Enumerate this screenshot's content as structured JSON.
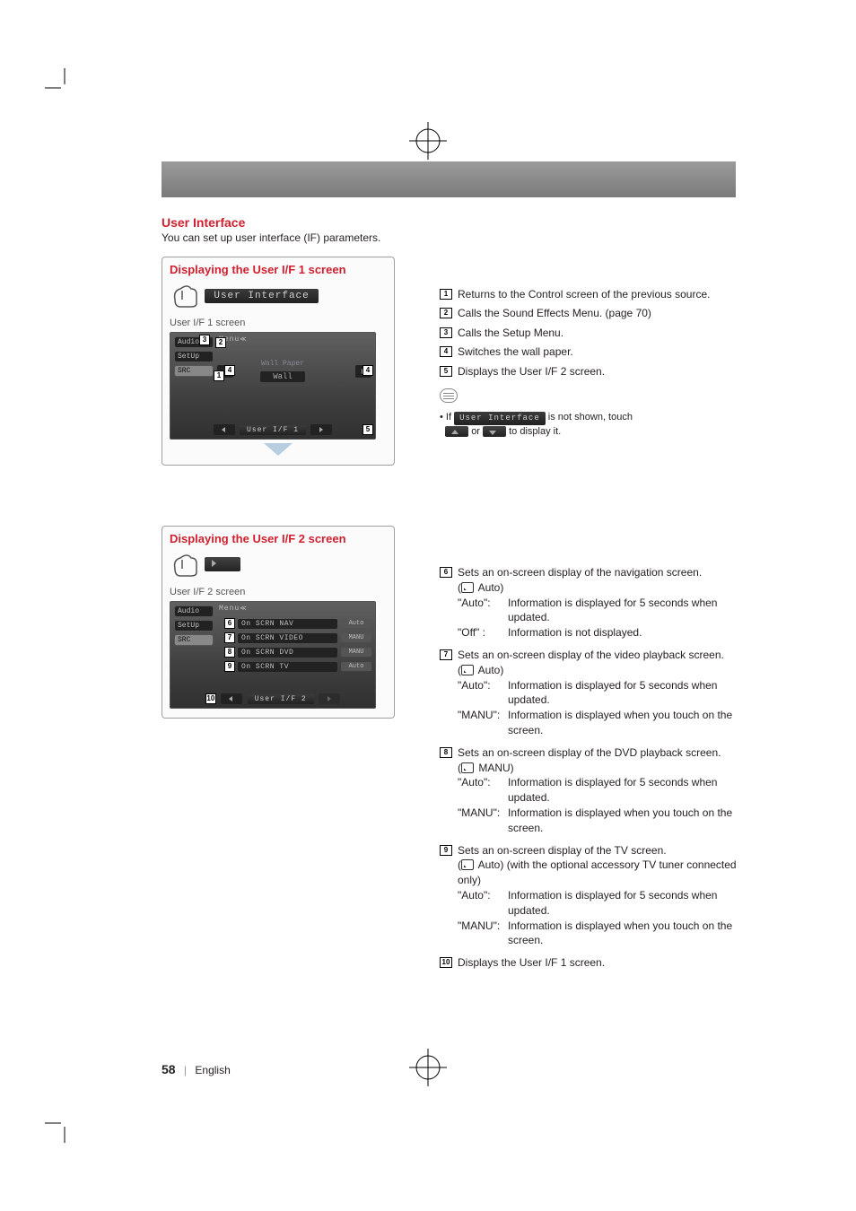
{
  "colors": {
    "accent": "#d01f2e",
    "text": "#231f20",
    "panel_border": "#a0a0a0",
    "dark_bar": "#2b2b2b",
    "banner_top": "#9b9b9b",
    "banner_bottom": "#7a7a7a"
  },
  "header": {
    "title": "User Interface",
    "subtitle": "You can set up user interface (IF) parameters."
  },
  "panel1": {
    "title": "Displaying the User I/F 1 screen",
    "screen_label": "User I/F 1 screen",
    "bar_label": "User Interface",
    "mock": {
      "tabs": {
        "audio": "Audio",
        "setup": "SetUp",
        "src": "SRC"
      },
      "menu": "Menu",
      "wall_paper": "Wall Paper",
      "wall_btn": "Wall",
      "footer_bar": "User I/F 1"
    }
  },
  "panel2": {
    "title": "Displaying the User I/F 2 screen",
    "screen_label": "User I/F 2 screen",
    "mock": {
      "tabs": {
        "audio": "Audio",
        "setup": "SetUp",
        "src": "SRC"
      },
      "menu": "Menu",
      "rows": [
        {
          "n": "6",
          "label": "On SCRN NAV",
          "val": "Auto"
        },
        {
          "n": "7",
          "label": "On SCRN VIDEO",
          "val": "MANU"
        },
        {
          "n": "8",
          "label": "On SCRN DVD",
          "val": "MANU"
        },
        {
          "n": "9",
          "label": "On SCRN TV",
          "val": "Auto"
        }
      ],
      "footer_bar": "User I/F 2",
      "footer_left_n": "10"
    }
  },
  "legend1": {
    "i1": "Returns to the Control screen of the previous source.",
    "i2": "Calls the Sound Effects Menu. (page 70)",
    "i3": "Calls the Setup Menu.",
    "i4": "Switches the wall paper.",
    "i5": "Displays the User I/F 2 screen.",
    "note_prefix": "If",
    "note_bar": "User Interface",
    "note_mid": "is not shown, touch",
    "note_or": "or",
    "note_suffix": "to display it."
  },
  "legend2": {
    "i6": {
      "head": "Sets an on-screen display of the navigation screen.",
      "default": "Auto",
      "rows": [
        {
          "k": "\"Auto\":",
          "v": "Information is displayed for 5 seconds when updated."
        },
        {
          "k": "\"Off\" :",
          "v": "Information is not displayed."
        }
      ]
    },
    "i7": {
      "head": "Sets an on-screen display of the video playback screen.",
      "default": "Auto",
      "rows": [
        {
          "k": "\"Auto\":",
          "v": "Information is displayed for 5 seconds when updated."
        },
        {
          "k": "\"MANU\":",
          "v": "Information is displayed when you touch on the screen."
        }
      ]
    },
    "i8": {
      "head": "Sets an on-screen display of the DVD playback screen.",
      "default": "MANU",
      "rows": [
        {
          "k": "\"Auto\":",
          "v": "Information is displayed for 5 seconds when updated."
        },
        {
          "k": "\"MANU\":",
          "v": "Information is displayed when you touch on the screen."
        }
      ]
    },
    "i9": {
      "head": "Sets an on-screen display of the TV screen.",
      "default": "Auto",
      "tail": "(with the optional accessory TV tuner connected only)",
      "rows": [
        {
          "k": "\"Auto\":",
          "v": "Information is displayed for 5 seconds when updated."
        },
        {
          "k": "\"MANU\":",
          "v": "Information is displayed when you touch on the screen."
        }
      ]
    },
    "i10": "Displays the User I/F 1 screen."
  },
  "footer": {
    "page": "58",
    "lang": "English"
  }
}
